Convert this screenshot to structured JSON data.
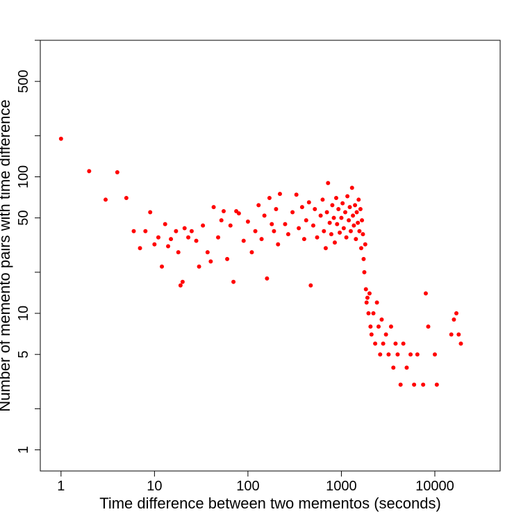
{
  "chart_data": {
    "type": "scatter",
    "title": "",
    "xlabel": "Time difference between two mementos (seconds)",
    "ylabel": "Number of memento pairs with time difference",
    "x_scale": "log",
    "y_scale": "log",
    "xlim": [
      0.6,
      50000
    ],
    "ylim": [
      0.7,
      1000
    ],
    "x_ticks": [
      {
        "value": 1,
        "label": "1"
      },
      {
        "value": 10,
        "label": "10"
      },
      {
        "value": 100,
        "label": "100"
      },
      {
        "value": 1000,
        "label": "1000"
      },
      {
        "value": 10000,
        "label": "10000"
      }
    ],
    "y_ticks": [
      {
        "value": 1,
        "label": "1"
      },
      {
        "value": 2,
        "label": ""
      },
      {
        "value": 5,
        "label": "5"
      },
      {
        "value": 10,
        "label": "10"
      },
      {
        "value": 20,
        "label": ""
      },
      {
        "value": 50,
        "label": "50"
      },
      {
        "value": 100,
        "label": "100"
      },
      {
        "value": 200,
        "label": ""
      },
      {
        "value": 500,
        "label": "500"
      },
      {
        "value": 1000,
        "label": ""
      }
    ],
    "grid": false,
    "legend": "none",
    "marker_color": "#ff0000",
    "series": [
      {
        "points": [
          [
            1,
            190
          ],
          [
            2,
            110
          ],
          [
            3,
            68
          ],
          [
            4,
            108
          ],
          [
            5,
            70
          ],
          [
            6,
            40
          ],
          [
            7,
            30
          ],
          [
            8,
            40
          ],
          [
            9,
            55
          ],
          [
            10,
            32
          ],
          [
            11,
            36
          ],
          [
            12,
            22
          ],
          [
            13,
            45
          ],
          [
            14,
            31
          ],
          [
            15,
            35
          ],
          [
            17,
            40
          ],
          [
            18,
            28
          ],
          [
            19,
            16
          ],
          [
            20,
            17
          ],
          [
            21,
            42
          ],
          [
            23,
            36
          ],
          [
            25,
            40
          ],
          [
            28,
            34
          ],
          [
            30,
            22
          ],
          [
            33,
            44
          ],
          [
            37,
            28
          ],
          [
            40,
            24
          ],
          [
            43,
            60
          ],
          [
            48,
            36
          ],
          [
            52,
            48
          ],
          [
            55,
            56
          ],
          [
            60,
            25
          ],
          [
            65,
            44
          ],
          [
            70,
            17
          ],
          [
            75,
            56
          ],
          [
            80,
            54
          ],
          [
            90,
            34
          ],
          [
            100,
            47
          ],
          [
            110,
            28
          ],
          [
            120,
            40
          ],
          [
            130,
            62
          ],
          [
            140,
            35
          ],
          [
            150,
            52
          ],
          [
            160,
            18
          ],
          [
            170,
            70
          ],
          [
            180,
            45
          ],
          [
            190,
            40
          ],
          [
            200,
            58
          ],
          [
            210,
            32
          ],
          [
            220,
            75
          ],
          [
            250,
            45
          ],
          [
            270,
            38
          ],
          [
            300,
            55
          ],
          [
            330,
            74
          ],
          [
            350,
            42
          ],
          [
            380,
            60
          ],
          [
            400,
            35
          ],
          [
            420,
            48
          ],
          [
            450,
            65
          ],
          [
            470,
            16
          ],
          [
            500,
            44
          ],
          [
            520,
            58
          ],
          [
            550,
            36
          ],
          [
            600,
            52
          ],
          [
            630,
            68
          ],
          [
            650,
            40
          ],
          [
            680,
            30
          ],
          [
            700,
            55
          ],
          [
            720,
            90
          ],
          [
            750,
            46
          ],
          [
            780,
            38
          ],
          [
            800,
            62
          ],
          [
            830,
            50
          ],
          [
            850,
            33
          ],
          [
            880,
            70
          ],
          [
            900,
            45
          ],
          [
            930,
            58
          ],
          [
            960,
            39
          ],
          [
            1000,
            50
          ],
          [
            1030,
            64
          ],
          [
            1060,
            42
          ],
          [
            1100,
            55
          ],
          [
            1130,
            36
          ],
          [
            1160,
            72
          ],
          [
            1200,
            48
          ],
          [
            1230,
            60
          ],
          [
            1260,
            40
          ],
          [
            1300,
            83
          ],
          [
            1330,
            52
          ],
          [
            1360,
            44
          ],
          [
            1400,
            62
          ],
          [
            1430,
            35
          ],
          [
            1460,
            55
          ],
          [
            1500,
            46
          ],
          [
            1530,
            68
          ],
          [
            1560,
            40
          ],
          [
            1600,
            58
          ],
          [
            1630,
            30
          ],
          [
            1660,
            48
          ],
          [
            1700,
            38
          ],
          [
            1730,
            25
          ],
          [
            1760,
            20
          ],
          [
            1800,
            32
          ],
          [
            1830,
            15
          ],
          [
            1860,
            12
          ],
          [
            1900,
            13
          ],
          [
            1950,
            10
          ],
          [
            2000,
            14
          ],
          [
            2050,
            8
          ],
          [
            2100,
            7
          ],
          [
            2200,
            10
          ],
          [
            2300,
            6
          ],
          [
            2400,
            12
          ],
          [
            2500,
            8
          ],
          [
            2600,
            5
          ],
          [
            2700,
            9
          ],
          [
            2800,
            6
          ],
          [
            3000,
            7
          ],
          [
            3200,
            5
          ],
          [
            3400,
            8
          ],
          [
            3600,
            4
          ],
          [
            3800,
            6
          ],
          [
            4000,
            5
          ],
          [
            4300,
            3
          ],
          [
            4600,
            6
          ],
          [
            5000,
            4
          ],
          [
            5500,
            5
          ],
          [
            6000,
            3
          ],
          [
            6500,
            5
          ],
          [
            7500,
            3
          ],
          [
            8000,
            14
          ],
          [
            8500,
            8
          ],
          [
            10000,
            5
          ],
          [
            10500,
            3
          ],
          [
            15000,
            7
          ],
          [
            16000,
            9
          ],
          [
            17000,
            10
          ],
          [
            18000,
            7
          ],
          [
            19000,
            6
          ]
        ]
      }
    ]
  }
}
